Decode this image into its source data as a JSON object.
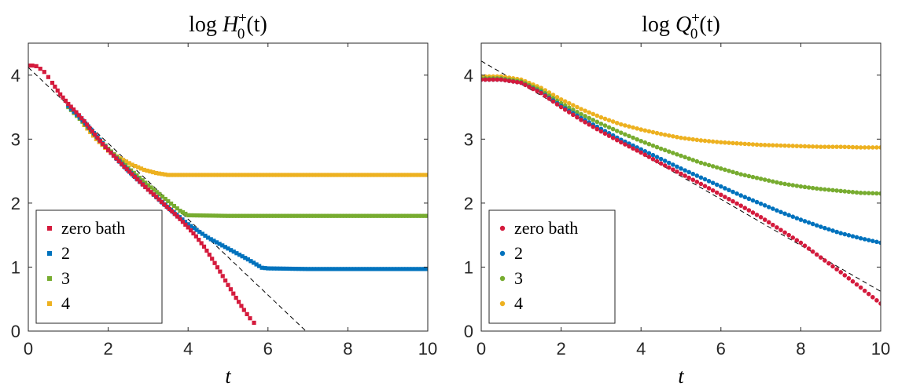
{
  "chart_data": [
    {
      "type": "scatter",
      "title": {
        "pre": "log ",
        "var": "H",
        "sub": "0",
        "sup": "+",
        "post": "(t)"
      },
      "xlabel": "t",
      "ylabel": "",
      "xlim": [
        0,
        10
      ],
      "ylim": [
        0,
        4.5
      ],
      "xticks": [
        "0",
        "2",
        "4",
        "6",
        "8",
        "10"
      ],
      "yticks": [
        "0",
        "1",
        "2",
        "3",
        "4"
      ],
      "marker": "square",
      "legend_placement": "bottom-left",
      "series": [
        {
          "name": "zero bath",
          "color": "#D41A3C",
          "points": [
            [
              0,
              4.15
            ],
            [
              0.1,
              4.15
            ],
            [
              0.2,
              4.14
            ],
            [
              0.3,
              4.1
            ],
            [
              0.4,
              4.05
            ],
            [
              0.5,
              3.97
            ],
            [
              0.6,
              3.88
            ],
            [
              0.8,
              3.7
            ],
            [
              1.0,
              3.55
            ],
            [
              1.2,
              3.42
            ],
            [
              1.4,
              3.28
            ],
            [
              1.6,
              3.12
            ],
            [
              1.8,
              2.97
            ],
            [
              2.0,
              2.83
            ],
            [
              2.2,
              2.7
            ],
            [
              2.4,
              2.57
            ],
            [
              2.6,
              2.45
            ],
            [
              2.8,
              2.33
            ],
            [
              3.0,
              2.21
            ],
            [
              3.2,
              2.1
            ],
            [
              3.4,
              1.98
            ],
            [
              3.6,
              1.87
            ],
            [
              3.8,
              1.75
            ],
            [
              4.0,
              1.62
            ],
            [
              4.2,
              1.48
            ],
            [
              4.4,
              1.32
            ],
            [
              4.6,
              1.13
            ],
            [
              4.8,
              0.93
            ],
            [
              5.0,
              0.72
            ],
            [
              5.2,
              0.52
            ],
            [
              5.4,
              0.33
            ],
            [
              5.55,
              0.2
            ],
            [
              5.65,
              0.13
            ]
          ]
        },
        {
          "name": "2",
          "color": "#0072BD",
          "points": [
            [
              1.0,
              3.52
            ],
            [
              1.5,
              3.2
            ],
            [
              2.0,
              2.83
            ],
            [
              2.5,
              2.51
            ],
            [
              3.0,
              2.21
            ],
            [
              3.5,
              1.93
            ],
            [
              4.0,
              1.67
            ],
            [
              4.5,
              1.46
            ],
            [
              5.0,
              1.29
            ],
            [
              5.5,
              1.12
            ],
            [
              5.85,
              0.99
            ],
            [
              6.0,
              0.98
            ],
            [
              7.0,
              0.97
            ],
            [
              8.0,
              0.97
            ],
            [
              9.0,
              0.97
            ],
            [
              10.0,
              0.97
            ]
          ]
        },
        {
          "name": "3",
          "color": "#77AC30",
          "points": [
            [
              1.0,
              3.5
            ],
            [
              1.5,
              3.18
            ],
            [
              2.0,
              2.85
            ],
            [
              2.5,
              2.55
            ],
            [
              3.0,
              2.28
            ],
            [
              3.5,
              2.03
            ],
            [
              3.8,
              1.88
            ],
            [
              4.0,
              1.81
            ],
            [
              5.0,
              1.8
            ],
            [
              6.0,
              1.8
            ],
            [
              7.0,
              1.8
            ],
            [
              8.0,
              1.8
            ],
            [
              9.0,
              1.8
            ],
            [
              10.0,
              1.8
            ]
          ]
        },
        {
          "name": "4",
          "color": "#EDB120",
          "points": [
            [
              1.4,
              3.22
            ],
            [
              1.7,
              3.0
            ],
            [
              2.0,
              2.82
            ],
            [
              2.3,
              2.7
            ],
            [
              2.6,
              2.6
            ],
            [
              2.9,
              2.52
            ],
            [
              3.2,
              2.47
            ],
            [
              3.5,
              2.44
            ],
            [
              4.0,
              2.44
            ],
            [
              5.0,
              2.44
            ],
            [
              6.0,
              2.44
            ],
            [
              7.0,
              2.44
            ],
            [
              8.0,
              2.44
            ],
            [
              9.0,
              2.44
            ],
            [
              10.0,
              2.44
            ]
          ]
        }
      ],
      "reference_line": {
        "style": "dashed",
        "color": "#000000",
        "points": [
          [
            0,
            4.12
          ],
          [
            6.95,
            0
          ]
        ]
      }
    },
    {
      "type": "scatter",
      "title": {
        "pre": "log ",
        "var": "Q",
        "sub": "0",
        "sup": "+",
        "post": "(t)"
      },
      "xlabel": "t",
      "ylabel": "",
      "xlim": [
        0,
        10
      ],
      "ylim": [
        0,
        4.5
      ],
      "xticks": [
        "0",
        "2",
        "4",
        "6",
        "8",
        "10"
      ],
      "yticks": [
        "0",
        "1",
        "2",
        "3",
        "4"
      ],
      "marker": "circle",
      "legend_placement": "bottom-left",
      "series": [
        {
          "name": "zero bath",
          "color": "#D41A3C",
          "points": [
            [
              0,
              3.93
            ],
            [
              0.5,
              3.93
            ],
            [
              1.0,
              3.88
            ],
            [
              1.5,
              3.72
            ],
            [
              2.0,
              3.5
            ],
            [
              2.5,
              3.3
            ],
            [
              3.0,
              3.12
            ],
            [
              3.5,
              2.95
            ],
            [
              4.0,
              2.79
            ],
            [
              4.5,
              2.62
            ],
            [
              5.0,
              2.46
            ],
            [
              5.5,
              2.3
            ],
            [
              6.0,
              2.13
            ],
            [
              6.5,
              1.96
            ],
            [
              7.0,
              1.78
            ],
            [
              7.5,
              1.58
            ],
            [
              8.0,
              1.38
            ],
            [
              8.5,
              1.15
            ],
            [
              9.0,
              0.92
            ],
            [
              9.5,
              0.68
            ],
            [
              10.0,
              0.43
            ]
          ]
        },
        {
          "name": "2",
          "color": "#0072BD",
          "points": [
            [
              0,
              3.93
            ],
            [
              0.5,
              3.93
            ],
            [
              1.0,
              3.88
            ],
            [
              1.5,
              3.73
            ],
            [
              2.0,
              3.52
            ],
            [
              2.5,
              3.33
            ],
            [
              3.0,
              3.16
            ],
            [
              3.5,
              2.99
            ],
            [
              4.0,
              2.84
            ],
            [
              4.5,
              2.69
            ],
            [
              5.0,
              2.54
            ],
            [
              5.5,
              2.4
            ],
            [
              6.0,
              2.26
            ],
            [
              6.5,
              2.12
            ],
            [
              7.0,
              1.99
            ],
            [
              7.5,
              1.86
            ],
            [
              8.0,
              1.74
            ],
            [
              8.5,
              1.63
            ],
            [
              9.0,
              1.53
            ],
            [
              9.5,
              1.45
            ],
            [
              10.0,
              1.38
            ]
          ]
        },
        {
          "name": "3",
          "color": "#77AC30",
          "points": [
            [
              0,
              3.95
            ],
            [
              0.5,
              3.95
            ],
            [
              1.0,
              3.9
            ],
            [
              1.5,
              3.76
            ],
            [
              2.0,
              3.56
            ],
            [
              2.5,
              3.39
            ],
            [
              3.0,
              3.24
            ],
            [
              3.5,
              3.1
            ],
            [
              4.0,
              2.97
            ],
            [
              4.5,
              2.85
            ],
            [
              5.0,
              2.74
            ],
            [
              5.5,
              2.63
            ],
            [
              6.0,
              2.54
            ],
            [
              6.5,
              2.45
            ],
            [
              7.0,
              2.38
            ],
            [
              7.5,
              2.31
            ],
            [
              8.0,
              2.26
            ],
            [
              8.5,
              2.22
            ],
            [
              9.0,
              2.19
            ],
            [
              9.5,
              2.16
            ],
            [
              10.0,
              2.15
            ]
          ]
        },
        {
          "name": "4",
          "color": "#EDB120",
          "points": [
            [
              0,
              3.98
            ],
            [
              0.5,
              3.98
            ],
            [
              1.0,
              3.93
            ],
            [
              1.5,
              3.8
            ],
            [
              2.0,
              3.62
            ],
            [
              2.5,
              3.47
            ],
            [
              3.0,
              3.34
            ],
            [
              3.5,
              3.23
            ],
            [
              4.0,
              3.15
            ],
            [
              4.5,
              3.08
            ],
            [
              5.0,
              3.02
            ],
            [
              5.5,
              2.98
            ],
            [
              6.0,
              2.95
            ],
            [
              6.5,
              2.93
            ],
            [
              7.0,
              2.91
            ],
            [
              7.5,
              2.9
            ],
            [
              8.0,
              2.89
            ],
            [
              8.5,
              2.88
            ],
            [
              9.0,
              2.88
            ],
            [
              9.5,
              2.87
            ],
            [
              10.0,
              2.87
            ]
          ]
        }
      ],
      "reference_line": {
        "style": "dashed",
        "color": "#000000",
        "points": [
          [
            0,
            4.22
          ],
          [
            10,
            0.62
          ]
        ]
      }
    }
  ]
}
